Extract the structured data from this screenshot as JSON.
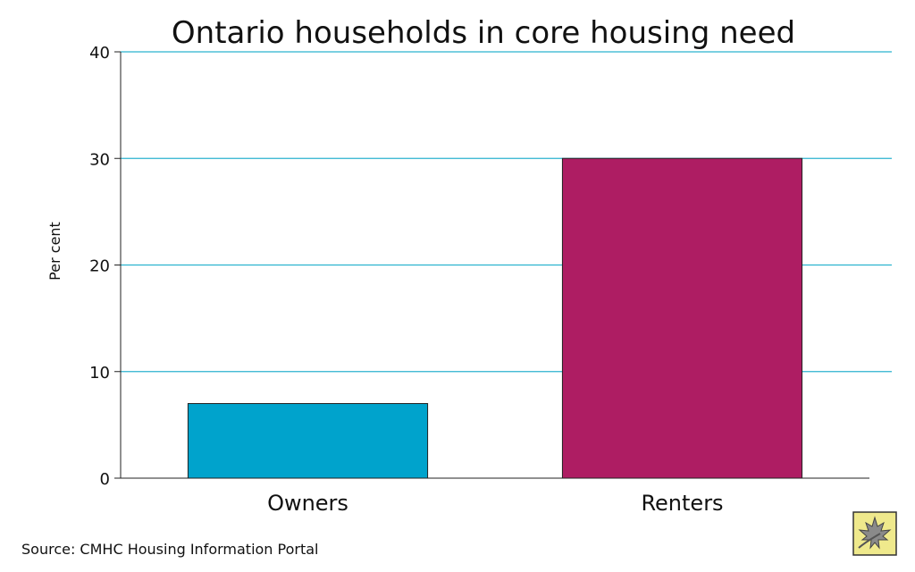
{
  "chart_data": {
    "type": "bar",
    "title": "Ontario households in core housing need",
    "xlabel": "",
    "ylabel": "Per cent",
    "categories": [
      "Owners",
      "Renters"
    ],
    "values": [
      7,
      30
    ],
    "colors": [
      "#00a3cc",
      "#ae1d63"
    ],
    "ylim": [
      0,
      40
    ],
    "yticks": [
      0,
      10,
      20,
      30,
      40
    ],
    "grid": true,
    "gridline_color": "#2bb3cf"
  },
  "source": "Source: CMHC Housing Information Portal",
  "logo_icon": "maple-leaf-logo-icon"
}
